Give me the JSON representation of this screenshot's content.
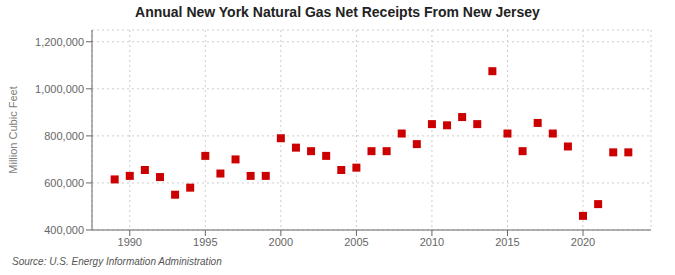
{
  "chart_data": {
    "type": "scatter",
    "title": "Annual New York Natural Gas Net Receipts From New Jersey",
    "y_label": "Million Cubic Feet",
    "annotations": [
      "Source: U.S. Energy Information Administration"
    ],
    "x": [
      1989,
      1990,
      1991,
      1992,
      1993,
      1994,
      1995,
      1996,
      1997,
      1998,
      1999,
      2000,
      2001,
      2002,
      2003,
      2004,
      2005,
      2006,
      2007,
      2008,
      2009,
      2010,
      2011,
      2012,
      2013,
      2014,
      2015,
      2016,
      2017,
      2018,
      2019,
      2020,
      2021,
      2022,
      2023
    ],
    "values": [
      615000,
      630000,
      655000,
      625000,
      550000,
      580000,
      715000,
      640000,
      700000,
      630000,
      630000,
      790000,
      750000,
      735000,
      715000,
      655000,
      665000,
      735000,
      735000,
      810000,
      765000,
      850000,
      845000,
      880000,
      850000,
      1075000,
      810000,
      735000,
      855000,
      810000,
      755000,
      460000,
      510000,
      730000,
      730000
    ],
    "color": "#cc0000",
    "marker": "square",
    "xlim": [
      1987.5,
      2024.5
    ],
    "ylim": [
      400000,
      1250000
    ],
    "xticks": [
      1990,
      1995,
      2000,
      2005,
      2010,
      2015,
      2020
    ],
    "yticks": [
      {
        "value": 400000,
        "label": "400,000"
      },
      {
        "value": 600000,
        "label": "600,000"
      },
      {
        "value": 800000,
        "label": "800,000"
      },
      {
        "value": 1000000,
        "label": "1,000,000"
      },
      {
        "value": 1200000,
        "label": "1,200,000"
      }
    ],
    "grid": true
  }
}
